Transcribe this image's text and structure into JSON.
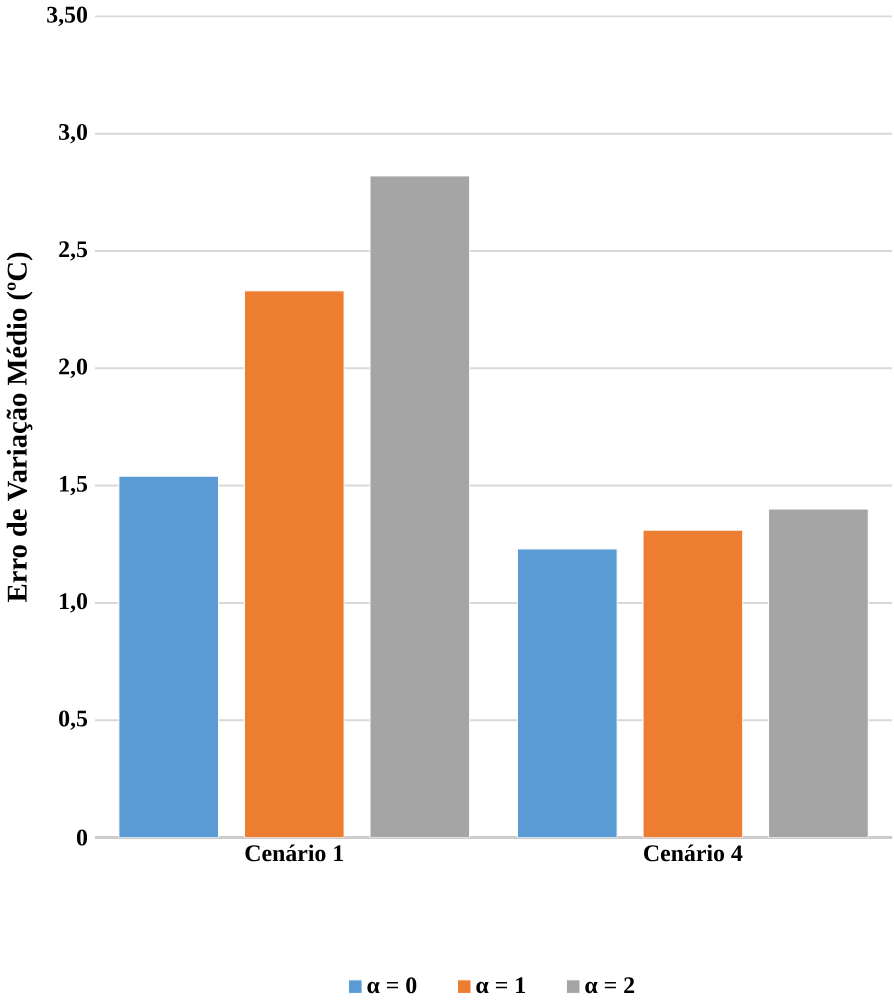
{
  "chart_data": {
    "type": "bar",
    "ylabel": "Erro de Variação Médio (ºC)",
    "categories": [
      "Cenário 1",
      "Cenário 4"
    ],
    "series": [
      {
        "name": "α = 0",
        "color": "#5b9bd5",
        "values": [
          1.54,
          1.23
        ]
      },
      {
        "name": "α = 1",
        "color": "#ed7d31",
        "values": [
          2.33,
          1.31
        ]
      },
      {
        "name": "α = 2",
        "color": "#a5a5a5",
        "values": [
          2.82,
          1.4
        ]
      }
    ],
    "ylim": [
      0,
      3.5
    ],
    "yticks": [
      0,
      {
        "value": 0.5,
        "label": "0,5"
      },
      {
        "value": 1,
        "label": "1,0"
      },
      {
        "value": 1.5,
        "label": "1,5"
      },
      {
        "value": 2,
        "label": "2,0"
      },
      {
        "value": 2.5,
        "label": "2,5"
      },
      {
        "value": 3,
        "label": "3,0"
      },
      {
        "value": 3.5,
        "label": "3,50"
      }
    ],
    "grid": "y",
    "legend": "bottom"
  }
}
